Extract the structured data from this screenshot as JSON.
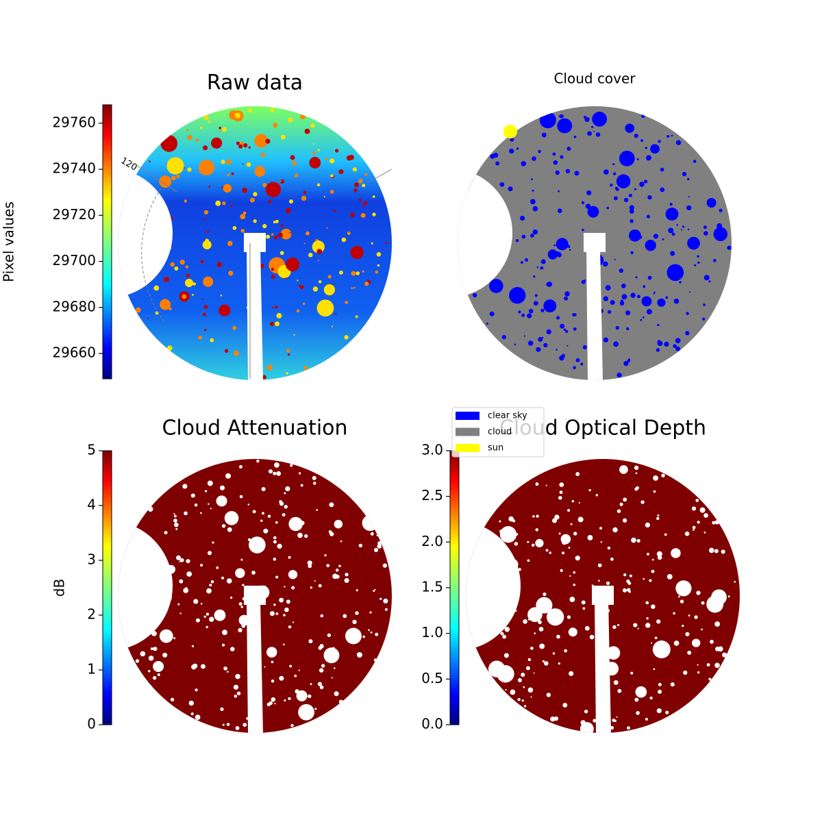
{
  "chart_data": [
    {
      "type": "image",
      "title": "Raw data",
      "colormap": "jet",
      "ylabel": "Pixel values",
      "ylim": [
        29649,
        29768
      ],
      "yticks": [
        29660,
        29680,
        29700,
        29720,
        29740,
        29760
      ],
      "annotations": [
        "120"
      ]
    },
    {
      "type": "image",
      "title": "Cloud cover",
      "series": [
        {
          "name": "clear sky",
          "color": "#0000ff"
        },
        {
          "name": "cloud",
          "color": "#808080"
        },
        {
          "name": "sun",
          "color": "#ffff00"
        }
      ]
    },
    {
      "type": "image",
      "title": "Cloud Attenuation",
      "colormap": "jet",
      "ylabel": "dB",
      "ylim": [
        0,
        5
      ],
      "yticks": [
        0,
        1,
        2,
        3,
        4,
        5
      ]
    },
    {
      "type": "image",
      "title": "Cloud Optical Depth",
      "colormap": "jet",
      "ylim": [
        0,
        3
      ],
      "yticks": [
        {
          "value": 0,
          "label": "0.0"
        },
        {
          "value": 0.5,
          "label": "0.5"
        },
        {
          "value": 1,
          "label": "1.0"
        },
        {
          "value": 1.5,
          "label": "1.5"
        },
        {
          "value": 2,
          "label": "2.0"
        },
        {
          "value": 2.5,
          "label": "2.5"
        },
        {
          "value": 3,
          "label": "3.0"
        }
      ]
    }
  ]
}
